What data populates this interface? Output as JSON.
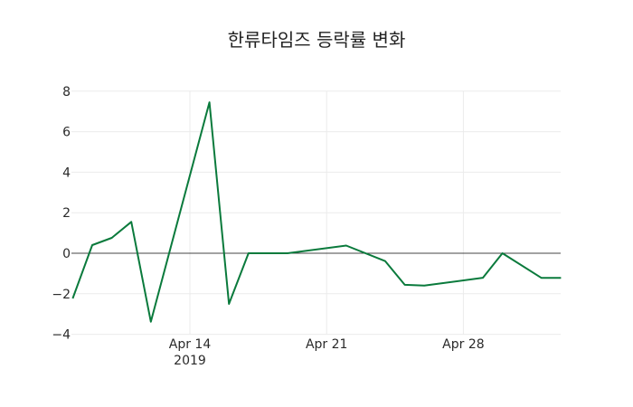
{
  "chart_data": {
    "type": "line",
    "title": "한류타임즈 등락률 변화",
    "xlabel": "",
    "ylabel": "",
    "ylim": [
      -4,
      8.5
    ],
    "yticks": [
      -4,
      -2,
      0,
      2,
      4,
      6,
      8
    ],
    "ytick_labels": [
      "−4",
      "−2",
      "0",
      "2",
      "4",
      "6",
      "8"
    ],
    "xticks": [
      "2019-04-14",
      "2019-04-21",
      "2019-04-28"
    ],
    "xtick_labels": [
      "Apr 14\n2019",
      "Apr 21",
      "Apr 28"
    ],
    "grid": true,
    "legend": null,
    "line_color": "#0a7a3c",
    "series": [
      {
        "name": "등락률",
        "x": [
          "2019-04-08",
          "2019-04-09",
          "2019-04-10",
          "2019-04-11",
          "2019-04-12",
          "2019-04-15",
          "2019-04-16",
          "2019-04-17",
          "2019-04-19",
          "2019-04-22",
          "2019-04-24",
          "2019-04-25",
          "2019-04-26",
          "2019-04-29",
          "2019-04-30",
          "2019-05-02",
          "2019-05-03"
        ],
        "values": [
          -2.23,
          0.4,
          0.76,
          1.55,
          -3.38,
          7.45,
          -2.5,
          0.0,
          0.0,
          0.38,
          -0.39,
          -1.56,
          -1.6,
          -1.21,
          0.0,
          -1.22,
          -1.22
        ]
      }
    ]
  },
  "title": "한류타임즈 등락률 변화",
  "axis": {
    "y_labels": [
      "8",
      "6",
      "4",
      "2",
      "0",
      "−2",
      "−4"
    ],
    "x_labels": [
      "Apr 14",
      "Apr 21",
      "Apr 28"
    ],
    "x_year": "2019"
  }
}
